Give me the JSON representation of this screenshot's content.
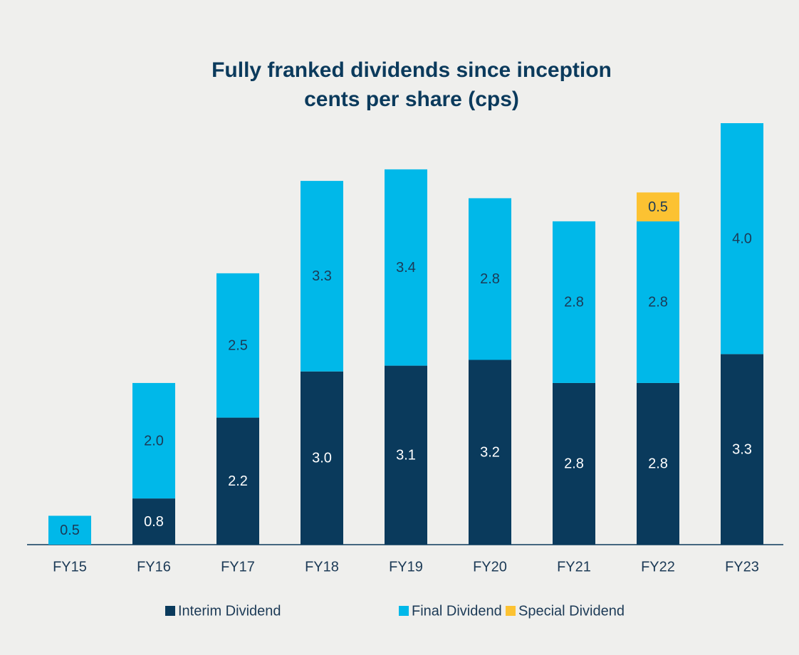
{
  "chart_data": {
    "type": "stacked_bar",
    "title": "Fully franked dividends since inception",
    "subtitle": "cents per share (cps)",
    "categories": [
      "FY15",
      "FY16",
      "FY17",
      "FY18",
      "FY19",
      "FY20",
      "FY21",
      "FY22",
      "FY23"
    ],
    "series": [
      {
        "name": "Interim Dividend",
        "color": "#0a3a5c",
        "values": [
          null,
          0.8,
          2.2,
          3.0,
          3.1,
          3.2,
          2.8,
          2.8,
          3.3
        ],
        "value_labels": [
          null,
          "0.8",
          "2.2",
          "3.0",
          "3.1",
          "3.2",
          "2.8",
          "2.8",
          "3.3"
        ]
      },
      {
        "name": "Final Dividend",
        "color": "#00b8e9",
        "values": [
          0.5,
          2.0,
          2.5,
          3.3,
          3.4,
          2.8,
          2.8,
          2.8,
          4.0
        ],
        "value_labels": [
          "0.5",
          "2.0",
          "2.5",
          "3.3",
          "3.4",
          "2.8",
          "2.8",
          "2.8",
          "4.0"
        ]
      },
      {
        "name": "Special Dividend",
        "color": "#fcc232",
        "values": [
          null,
          null,
          null,
          null,
          null,
          null,
          null,
          0.5,
          null
        ],
        "value_labels": [
          null,
          null,
          null,
          null,
          null,
          null,
          null,
          "0.5",
          null
        ]
      }
    ],
    "ylim": [
      0,
      7.3
    ],
    "legend": "bottom"
  }
}
